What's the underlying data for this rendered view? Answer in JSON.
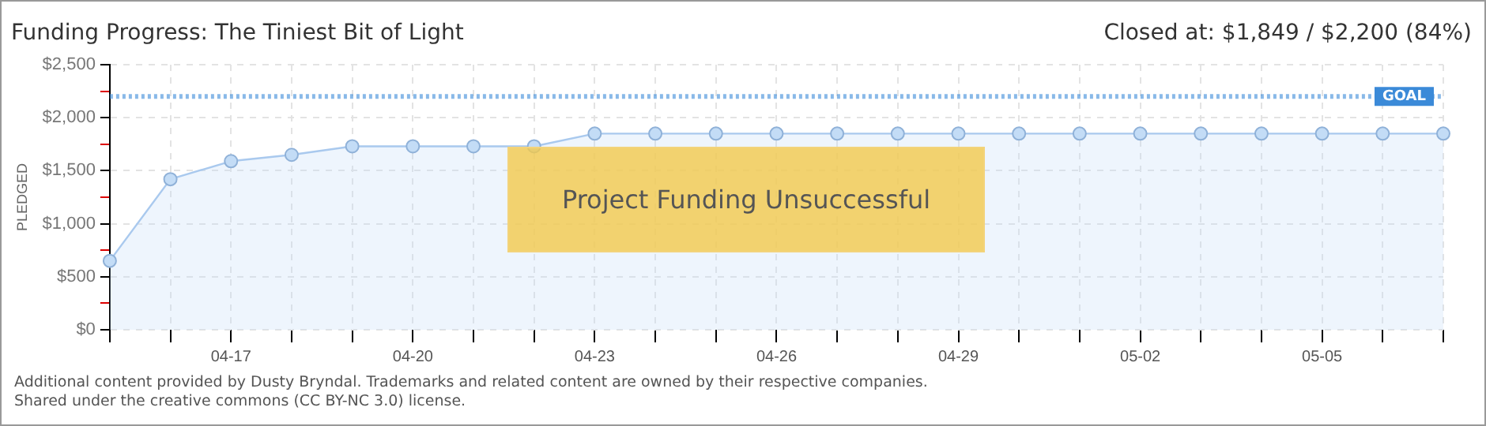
{
  "chart_data": {
    "type": "area",
    "title": "Funding Progress: The Tiniest Bit of Light",
    "subtitle": "Closed at: $1,849 / $2,200 (84%)",
    "ylabel": "PLEDGED",
    "categories": [
      null,
      null,
      "04-17",
      null,
      null,
      "04-20",
      null,
      null,
      "04-23",
      null,
      null,
      "04-26",
      null,
      null,
      "04-29",
      null,
      null,
      "05-02",
      null,
      null,
      "05-05",
      null,
      null
    ],
    "series": [
      {
        "color": "#a9c9ee",
        "values": [
          650,
          1420,
          1590,
          1650,
          1730,
          1730,
          1730,
          1730,
          1850,
          1850,
          1850,
          1850,
          1850,
          1850,
          1850,
          1850,
          1850,
          1850,
          1850,
          1850,
          1850,
          1850,
          1850
        ]
      }
    ],
    "ylim": [
      0,
      2500
    ],
    "yticks": [
      {
        "value": 0,
        "label": "$0"
      },
      {
        "value": 250,
        "label": null
      },
      {
        "value": 500,
        "label": "$500"
      },
      {
        "value": 750,
        "label": null
      },
      {
        "value": 1000,
        "label": "$1,000"
      },
      {
        "value": 1250,
        "label": null
      },
      {
        "value": 1500,
        "label": "$1,500"
      },
      {
        "value": 1750,
        "label": null
      },
      {
        "value": 2000,
        "label": "$2,000"
      },
      {
        "value": 2250,
        "label": null
      },
      {
        "value": 2500,
        "label": "$2,500"
      }
    ],
    "ref_lines": [
      {
        "axis": "y",
        "value": 2200,
        "label": "GOAL",
        "color": "#3b8ad8",
        "line_style": "dotted"
      }
    ],
    "annotations": [
      "Project Funding Unsuccessful",
      "Additional content provided by Dusty Bryndal. Trademarks and related content are owned by their respective companies.",
      "Shared under the creative commons (CC BY-NC 3.0) license."
    ],
    "grid": true,
    "marker": "circle",
    "line_style": "solid",
    "legend": false
  }
}
